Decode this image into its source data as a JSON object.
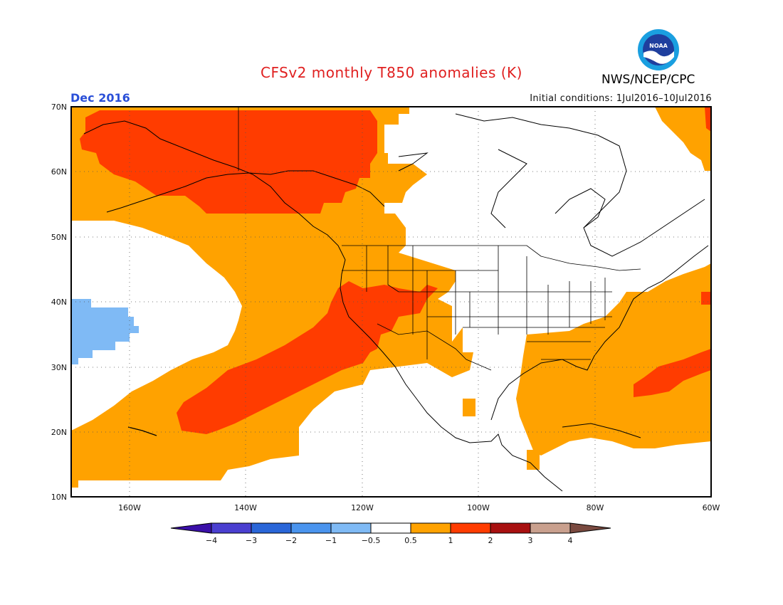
{
  "header": {
    "title": "CFSv2 monthly T850 anomalies (K)",
    "agency": "NWS/NCEP/CPC",
    "valid_month": "Dec 2016",
    "initial_conditions": "Initial conditions: 1Jul2016–10Jul2016"
  },
  "logo": {
    "text": "NOAA",
    "colors": {
      "outer": "#1a9fe0",
      "inner": "#1f3f9e",
      "bird": "#ffffff"
    }
  },
  "map": {
    "projection": "lat-lon",
    "lat_range": [
      10,
      70
    ],
    "lon_range": [
      -170,
      -60
    ],
    "lat_labels": [
      "70N",
      "60N",
      "50N",
      "40N",
      "30N",
      "20N",
      "10N"
    ],
    "lon_labels": [
      "160W",
      "140W",
      "120W",
      "100W",
      "80W",
      "60W"
    ],
    "grid": "dotted"
  },
  "colorbar": {
    "tick_labels": [
      "−4",
      "−3",
      "−2",
      "−1",
      "−0.5",
      "0.5",
      "1",
      "2",
      "3",
      "4"
    ],
    "colors": [
      "#3a0fa8",
      "#4a3fd0",
      "#2a66d8",
      "#4a94ee",
      "#7fbaf5",
      "#ffffff",
      "#ffa200",
      "#ff3c00",
      "#a81010",
      "#c9a08e",
      "#7a4a40"
    ]
  },
  "field": {
    "regions": [
      {
        "name": "positive-0.5-to-1",
        "color": "#ffa200"
      },
      {
        "name": "positive-1-to-2",
        "color": "#ff3c00"
      },
      {
        "name": "negative-0.5-to-1",
        "color": "#7fbaf5"
      }
    ]
  }
}
